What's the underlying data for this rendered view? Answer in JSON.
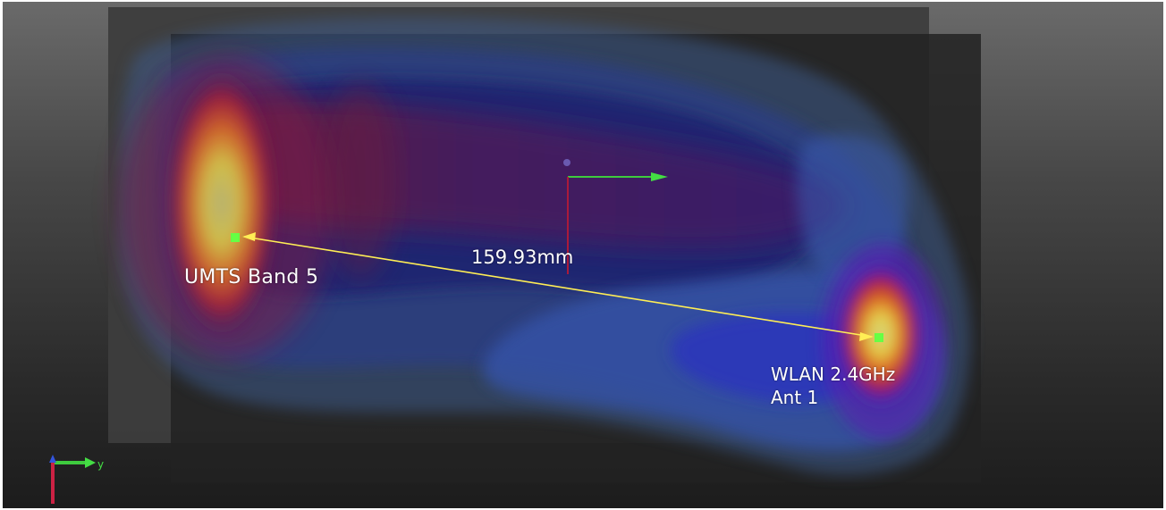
{
  "viewport": {
    "background": "#3a3a3a",
    "triad_axis_label": "y"
  },
  "antennas": [
    {
      "name": "UMTS Band 5",
      "lines": [
        "UMTS Band 5"
      ]
    },
    {
      "name": "WLAN 2.4GHz Ant 1",
      "lines": [
        "WLAN 2.4GHz",
        "Ant 1"
      ]
    }
  ],
  "measurement": {
    "distance_label": "159.93mm"
  },
  "colors": {
    "marker": "#66ff44",
    "measure_line": "#ffee55",
    "axis_green": "#44dd44",
    "axis_red": "#cc2244",
    "axis_blue": "#3355dd"
  }
}
